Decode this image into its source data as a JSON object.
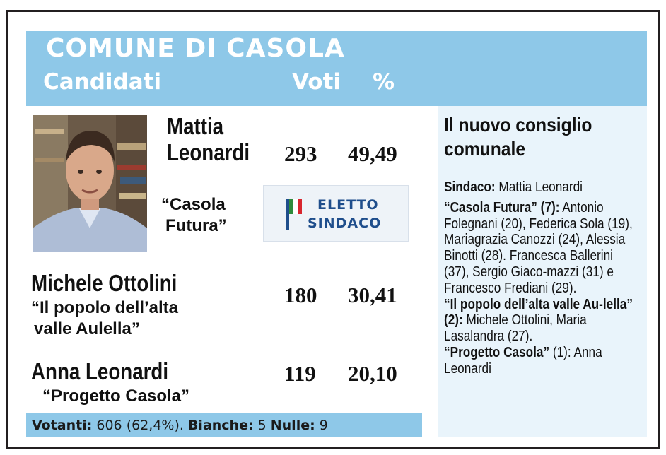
{
  "header": {
    "title": "COMUNE DI CASOLA",
    "col_candidates": "Candidati",
    "col_votes": "Voti",
    "col_percent": "%"
  },
  "candidates": [
    {
      "name_line1": "Mattia",
      "name_line2": "Leonardi",
      "list_line1": "“Casola",
      "list_line2": "Futura”",
      "votes": "293",
      "percent": "49,49"
    },
    {
      "name": "Michele Ottolini",
      "list_line1": "“Il popolo dell’alta",
      "list_line2": "valle Aulella”",
      "votes": "180",
      "percent": "30,41"
    },
    {
      "name": "Anna Leonardi",
      "list": "“Progetto Casola”",
      "votes": "119",
      "percent": "20,10"
    }
  ],
  "elected_badge": {
    "line1": "ELETTO",
    "line2": "SINDACO"
  },
  "footer": {
    "voters_label": "Votanti:",
    "voters_value": " 606 (62,4%). ",
    "blank_label": "Bianche:",
    "blank_value": " 5 ",
    "null_label": "Nulle:",
    "null_value": " 9"
  },
  "council": {
    "title": "Il nuovo consiglio comunale",
    "mayor_label": "Sindaco:",
    "mayor_name": " Mattia Leonardi",
    "groups": [
      {
        "label": "“Casola Futura” (7):",
        "members": " Antonio Folegnani (20), Federica Sola (19), Mariagrazia Canozzi (24), Alessia Binotti (28). Francesca Ballerini (37), Sergio Giaco-mazzi (31) e Francesco Frediani (29)."
      },
      {
        "label": "“Il popolo dell’alta valle Au-lella” (2):",
        "members": "  Michele Ottolini, Maria Lasalandra (27)."
      },
      {
        "label": "“Progetto Casola”",
        "members": " (1): Anna Leonardi"
      }
    ]
  },
  "colors": {
    "header_blue": "#8ec8e8",
    "council_bg": "#e9f4fb",
    "flag_green": "#2e8b3c",
    "flag_red": "#d8262e",
    "badge_text": "#1f4e8c"
  }
}
